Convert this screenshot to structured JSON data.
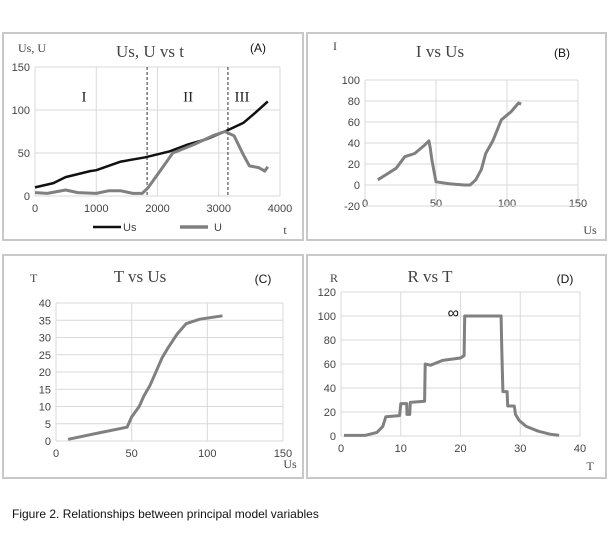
{
  "caption": "Figure 2. Relationships between principal model variables",
  "chart_data": [
    {
      "id": "A",
      "type": "line",
      "title": "Us, U vs t",
      "panel_label": "(A)",
      "xlabel": "t",
      "ylabel": "Us, U",
      "xlim": [
        0,
        4000
      ],
      "ylim": [
        0,
        150
      ],
      "xticks": [
        0,
        1000,
        2000,
        3000,
        4000
      ],
      "yticks": [
        0,
        50,
        100,
        150
      ],
      "grid": true,
      "legend": "bottom",
      "region_dividers": [
        1830,
        3150
      ],
      "regions": [
        {
          "label": "I",
          "x": 800,
          "y": 110
        },
        {
          "label": "II",
          "x": 2500,
          "y": 110
        },
        {
          "label": "III",
          "x": 3380,
          "y": 110
        }
      ],
      "series": [
        {
          "name": "Us",
          "color": "#111111",
          "points": [
            [
              0,
              10
            ],
            [
              300,
              15
            ],
            [
              500,
              22
            ],
            [
              900,
              29
            ],
            [
              1000,
              30
            ],
            [
              1400,
              40
            ],
            [
              1800,
              45
            ],
            [
              2200,
              52
            ],
            [
              2500,
              60
            ],
            [
              2800,
              66
            ],
            [
              3100,
              75
            ],
            [
              3400,
              85
            ],
            [
              3600,
              97
            ],
            [
              3800,
              110
            ]
          ]
        },
        {
          "name": "U",
          "color": "#808080",
          "points": [
            [
              0,
              4
            ],
            [
              200,
              3
            ],
            [
              500,
              7
            ],
            [
              700,
              4
            ],
            [
              1000,
              3
            ],
            [
              1200,
              6
            ],
            [
              1400,
              6
            ],
            [
              1600,
              3
            ],
            [
              1750,
              3
            ],
            [
              1850,
              10
            ],
            [
              2050,
              30
            ],
            [
              2250,
              50
            ],
            [
              2600,
              60
            ],
            [
              2900,
              70
            ],
            [
              3100,
              75
            ],
            [
              3250,
              70
            ],
            [
              3400,
              48
            ],
            [
              3500,
              35
            ],
            [
              3650,
              33
            ],
            [
              3750,
              29
            ],
            [
              3800,
              34
            ]
          ]
        }
      ]
    },
    {
      "id": "B",
      "type": "line",
      "title": "I vs Us",
      "panel_label": "(B)",
      "xlabel": "Us",
      "ylabel": "I",
      "xlim": [
        0,
        150
      ],
      "ylim": [
        -20,
        100
      ],
      "xticks": [
        0,
        50,
        100,
        150
      ],
      "yticks": [
        -20,
        0,
        20,
        40,
        60,
        80,
        100
      ],
      "grid": true,
      "series": [
        {
          "name": "I",
          "color": "#808080",
          "points": [
            [
              9,
              5
            ],
            [
              15,
              10
            ],
            [
              22,
              16
            ],
            [
              28,
              27
            ],
            [
              35,
              30
            ],
            [
              42,
              38
            ],
            [
              45,
              42
            ],
            [
              46,
              35
            ],
            [
              47,
              25
            ],
            [
              49,
              10
            ],
            [
              50,
              3
            ],
            [
              60,
              1
            ],
            [
              70,
              0
            ],
            [
              74,
              0
            ],
            [
              78,
              5
            ],
            [
              82,
              15
            ],
            [
              85,
              30
            ],
            [
              90,
              42
            ],
            [
              96,
              62
            ],
            [
              103,
              70
            ],
            [
              108,
              78
            ],
            [
              110,
              77
            ]
          ]
        }
      ]
    },
    {
      "id": "C",
      "type": "line",
      "title": "T vs Us",
      "panel_label": "(C)",
      "xlabel": "Us",
      "ylabel": "T",
      "xlim": [
        0,
        150
      ],
      "ylim": [
        0,
        40
      ],
      "xticks": [
        0,
        50,
        100,
        150
      ],
      "yticks": [
        0,
        5,
        10,
        15,
        20,
        25,
        30,
        35,
        40
      ],
      "grid": true,
      "series": [
        {
          "name": "T",
          "color": "#808080",
          "points": [
            [
              8,
              0.5
            ],
            [
              30,
              2.5
            ],
            [
              47,
              4
            ],
            [
              50,
              7
            ],
            [
              55,
              10
            ],
            [
              58,
              13
            ],
            [
              62,
              16
            ],
            [
              66,
              20
            ],
            [
              70,
              24
            ],
            [
              74,
              27
            ],
            [
              80,
              31
            ],
            [
              86,
              34
            ],
            [
              95,
              35.3
            ],
            [
              110,
              36.3
            ]
          ]
        }
      ]
    },
    {
      "id": "D",
      "type": "line",
      "title": "R vs T",
      "panel_label": "(D)",
      "xlabel": "T",
      "ylabel": "R",
      "xlim": [
        0,
        40
      ],
      "ylim": [
        0,
        120
      ],
      "xticks": [
        0,
        10,
        20,
        30,
        40
      ],
      "yticks": [
        0,
        20,
        40,
        60,
        80,
        100,
        120
      ],
      "grid": true,
      "annotation": {
        "text": "∞",
        "x": 18.8,
        "y": 100
      },
      "series": [
        {
          "name": "R",
          "color": "#808080",
          "points": [
            [
              0.5,
              0.5
            ],
            [
              4,
              0.5
            ],
            [
              6,
              3
            ],
            [
              7,
              8
            ],
            [
              7.5,
              16
            ],
            [
              9.8,
              17
            ],
            [
              10,
              27
            ],
            [
              11,
              27
            ],
            [
              11.05,
              18
            ],
            [
              11.5,
              18
            ],
            [
              11.6,
              28
            ],
            [
              14,
              29
            ],
            [
              14.1,
              60
            ],
            [
              15,
              59
            ],
            [
              17,
              63
            ],
            [
              20,
              65
            ],
            [
              20.6,
              67
            ],
            [
              20.7,
              100
            ],
            [
              26.8,
              100
            ],
            [
              26.9,
              75
            ],
            [
              27.1,
              37
            ],
            [
              27.8,
              37
            ],
            [
              27.9,
              25
            ],
            [
              29,
              25
            ],
            [
              29.2,
              18
            ],
            [
              29.8,
              13
            ],
            [
              31,
              8
            ],
            [
              33,
              4
            ],
            [
              35,
              1.5
            ],
            [
              36.5,
              0.5
            ]
          ]
        }
      ]
    }
  ]
}
